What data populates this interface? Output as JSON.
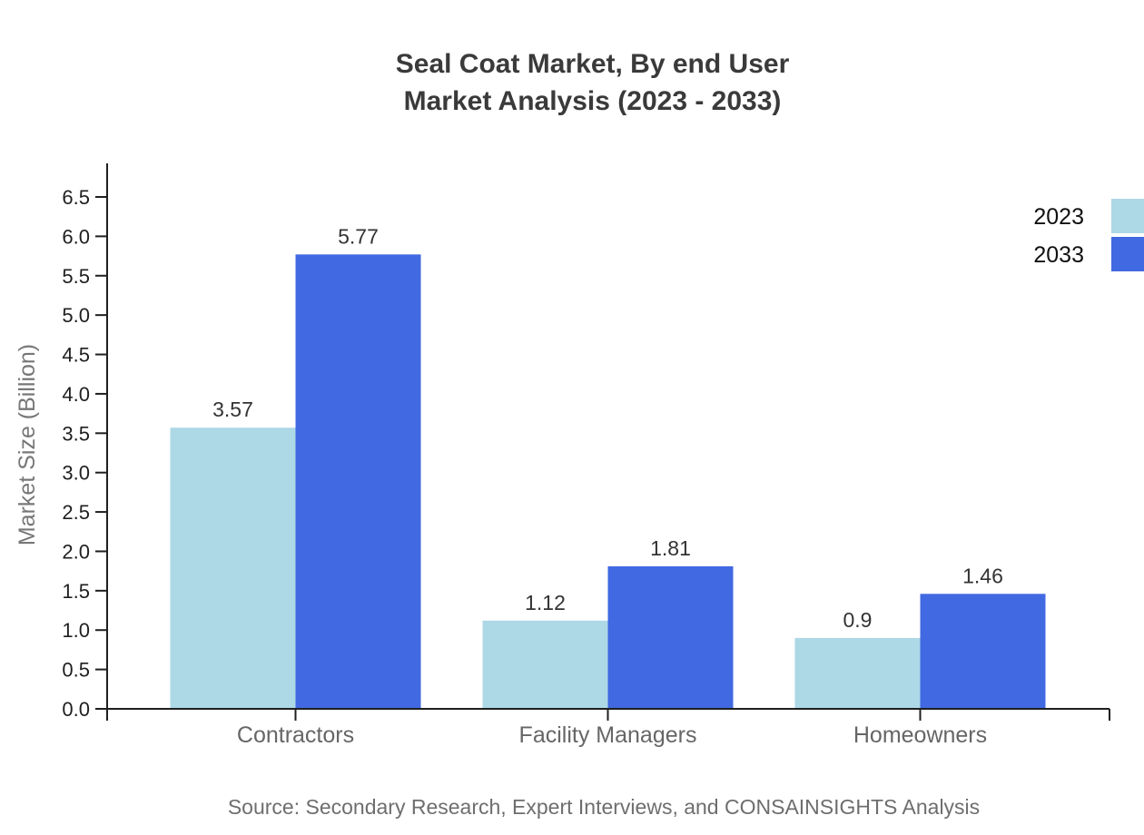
{
  "title": {
    "line1": "Seal Coat Market, By end User",
    "line2": "Market Analysis (2023 - 2033)"
  },
  "source": "Source: Secondary Research, Expert Interviews, and CONSAINSIGHTS Analysis",
  "chart_data": {
    "type": "bar",
    "title": "Seal Coat Market, By end User Market Analysis (2023 - 2033)",
    "categories": [
      "Contractors",
      "Facility Managers",
      "Homeowners"
    ],
    "series": [
      {
        "name": "2023",
        "color": "#ADD8E6",
        "values": [
          3.57,
          1.12,
          0.9
        ],
        "labels": [
          "3.57",
          "1.12",
          "0.9"
        ]
      },
      {
        "name": "2033",
        "color": "#4169E1",
        "values": [
          5.77,
          1.81,
          1.46
        ],
        "labels": [
          "5.77",
          "1.81",
          "1.46"
        ]
      }
    ],
    "xlabel": "",
    "ylabel": "Market Size (Billion)",
    "ylim": [
      0,
      6.9
    ],
    "ytick_step": 0.5,
    "ytick_labels": [
      "0.0",
      "0.5",
      "1.0",
      "1.5",
      "2.0",
      "2.5",
      "3.0",
      "3.5",
      "4.0",
      "4.5",
      "5.0",
      "5.5",
      "6.0",
      "6.5"
    ],
    "grid": false,
    "legend_position": "top-right"
  },
  "colors": {
    "axis": "#1f1f1f",
    "title_text": "#3a3a3a",
    "tick_text": "#1f1f1f",
    "category_text": "#666666",
    "value_text": "#333333",
    "legend_text": "#111111",
    "muted_text": "#6e6e6e"
  }
}
